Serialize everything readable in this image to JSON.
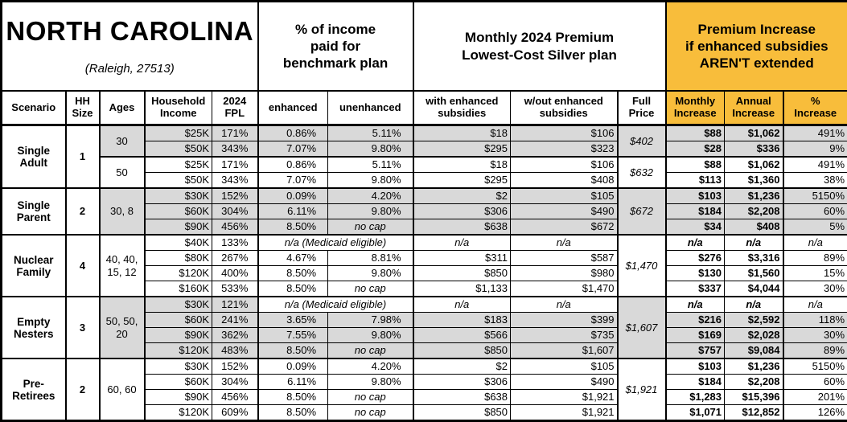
{
  "title": {
    "state": "NORTH CAROLINA",
    "subtitle": "(Raleigh, 27513)"
  },
  "group_headers": {
    "pct_income": "% of income\npaid for\nbenchmark plan",
    "premium": "Monthly 2024 Premium\nLowest-Cost Silver plan",
    "increase": "Premium Increase\nif enhanced subsidies\nAREN'T extended"
  },
  "column_headers": {
    "scenario": "Scenario",
    "hh_size": "HH\nSize",
    "ages": "Ages",
    "household_income": "Household\nIncome",
    "fpl": "2024\nFPL",
    "enhanced": "enhanced",
    "unenhanced": "unenhanced",
    "with_subsidies": "with enhanced\nsubsidies",
    "without_subsidies": "w/out enhanced\nsubsidies",
    "full_price": "Full\nPrice",
    "monthly_increase": "Monthly\nIncrease",
    "annual_increase": "Annual\nIncrease",
    "pct_increase": "%\nIncrease"
  },
  "colors": {
    "accent_orange": "#F8BD3B",
    "row_gray": "#D9D9D9",
    "border": "#000000"
  },
  "scenarios": [
    {
      "name": "Single\nAdult",
      "hh_size": "1",
      "age_groups": [
        {
          "ages": "30",
          "shaded": true,
          "full_price": "$402",
          "rows": [
            {
              "income": "$25K",
              "fpl": "171%",
              "enhanced": "0.86%",
              "unenhanced": "5.11%",
              "with_sub": "$18",
              "without_sub": "$106",
              "monthly": "$88",
              "annual": "$1,062",
              "pct": "491%"
            },
            {
              "income": "$50K",
              "fpl": "343%",
              "enhanced": "7.07%",
              "unenhanced": "9.80%",
              "with_sub": "$295",
              "without_sub": "$323",
              "monthly": "$28",
              "annual": "$336",
              "pct": "9%"
            }
          ]
        },
        {
          "ages": "50",
          "shaded": false,
          "full_price": "$632",
          "rows": [
            {
              "income": "$25K",
              "fpl": "171%",
              "enhanced": "0.86%",
              "unenhanced": "5.11%",
              "with_sub": "$18",
              "without_sub": "$106",
              "monthly": "$88",
              "annual": "$1,062",
              "pct": "491%"
            },
            {
              "income": "$50K",
              "fpl": "343%",
              "enhanced": "7.07%",
              "unenhanced": "9.80%",
              "with_sub": "$295",
              "without_sub": "$408",
              "monthly": "$113",
              "annual": "$1,360",
              "pct": "38%"
            }
          ]
        }
      ]
    },
    {
      "name": "Single\nParent",
      "hh_size": "2",
      "age_groups": [
        {
          "ages": "30, 8",
          "shaded": true,
          "full_price": "$672",
          "rows": [
            {
              "income": "$30K",
              "fpl": "152%",
              "enhanced": "0.09%",
              "unenhanced": "4.20%",
              "with_sub": "$2",
              "without_sub": "$105",
              "monthly": "$103",
              "annual": "$1,236",
              "pct": "5150%"
            },
            {
              "income": "$60K",
              "fpl": "304%",
              "enhanced": "6.11%",
              "unenhanced": "9.80%",
              "with_sub": "$306",
              "without_sub": "$490",
              "monthly": "$184",
              "annual": "$2,208",
              "pct": "60%"
            },
            {
              "income": "$90K",
              "fpl": "456%",
              "enhanced": "8.50%",
              "unenhanced": "no cap",
              "with_sub": "$638",
              "without_sub": "$672",
              "monthly": "$34",
              "annual": "$408",
              "pct": "5%"
            }
          ]
        }
      ]
    },
    {
      "name": "Nuclear\nFamily",
      "hh_size": "4",
      "age_groups": [
        {
          "ages": "40, 40,\n15, 12",
          "shaded": false,
          "full_price": "$1,470",
          "rows": [
            {
              "income": "$40K",
              "fpl": "133%",
              "medicaid": "n/a (Medicaid eligible)",
              "with_sub": "n/a",
              "without_sub": "n/a",
              "monthly": "n/a",
              "annual": "n/a",
              "pct": "n/a"
            },
            {
              "income": "$80K",
              "fpl": "267%",
              "enhanced": "4.67%",
              "unenhanced": "8.81%",
              "with_sub": "$311",
              "without_sub": "$587",
              "monthly": "$276",
              "annual": "$3,316",
              "pct": "89%"
            },
            {
              "income": "$120K",
              "fpl": "400%",
              "enhanced": "8.50%",
              "unenhanced": "9.80%",
              "with_sub": "$850",
              "without_sub": "$980",
              "monthly": "$130",
              "annual": "$1,560",
              "pct": "15%"
            },
            {
              "income": "$160K",
              "fpl": "533%",
              "enhanced": "8.50%",
              "unenhanced": "no cap",
              "with_sub": "$1,133",
              "without_sub": "$1,470",
              "monthly": "$337",
              "annual": "$4,044",
              "pct": "30%"
            }
          ]
        }
      ]
    },
    {
      "name": "Empty\nNesters",
      "hh_size": "3",
      "age_groups": [
        {
          "ages": "50, 50,\n20",
          "shaded": true,
          "full_price": "$1,607",
          "rows": [
            {
              "income": "$30K",
              "fpl": "121%",
              "medicaid": "n/a (Medicaid eligible)",
              "with_sub": "n/a",
              "without_sub": "n/a",
              "monthly": "n/a",
              "annual": "n/a",
              "pct": "n/a"
            },
            {
              "income": "$60K",
              "fpl": "241%",
              "enhanced": "3.65%",
              "unenhanced": "7.98%",
              "with_sub": "$183",
              "without_sub": "$399",
              "monthly": "$216",
              "annual": "$2,592",
              "pct": "118%"
            },
            {
              "income": "$90K",
              "fpl": "362%",
              "enhanced": "7.55%",
              "unenhanced": "9.80%",
              "with_sub": "$566",
              "without_sub": "$735",
              "monthly": "$169",
              "annual": "$2,028",
              "pct": "30%"
            },
            {
              "income": "$120K",
              "fpl": "483%",
              "enhanced": "8.50%",
              "unenhanced": "no cap",
              "with_sub": "$850",
              "without_sub": "$1,607",
              "monthly": "$757",
              "annual": "$9,084",
              "pct": "89%"
            }
          ]
        }
      ]
    },
    {
      "name": "Pre-\nRetirees",
      "hh_size": "2",
      "age_groups": [
        {
          "ages": "60, 60",
          "shaded": false,
          "full_price": "$1,921",
          "rows": [
            {
              "income": "$30K",
              "fpl": "152%",
              "enhanced": "0.09%",
              "unenhanced": "4.20%",
              "with_sub": "$2",
              "without_sub": "$105",
              "monthly": "$103",
              "annual": "$1,236",
              "pct": "5150%"
            },
            {
              "income": "$60K",
              "fpl": "304%",
              "enhanced": "6.11%",
              "unenhanced": "9.80%",
              "with_sub": "$306",
              "without_sub": "$490",
              "monthly": "$184",
              "annual": "$2,208",
              "pct": "60%"
            },
            {
              "income": "$90K",
              "fpl": "456%",
              "enhanced": "8.50%",
              "unenhanced": "no cap",
              "with_sub": "$638",
              "without_sub": "$1,921",
              "monthly": "$1,283",
              "annual": "$15,396",
              "pct": "201%"
            },
            {
              "income": "$120K",
              "fpl": "609%",
              "enhanced": "8.50%",
              "unenhanced": "no cap",
              "with_sub": "$850",
              "without_sub": "$1,921",
              "monthly": "$1,071",
              "annual": "$12,852",
              "pct": "126%"
            }
          ]
        }
      ]
    }
  ]
}
